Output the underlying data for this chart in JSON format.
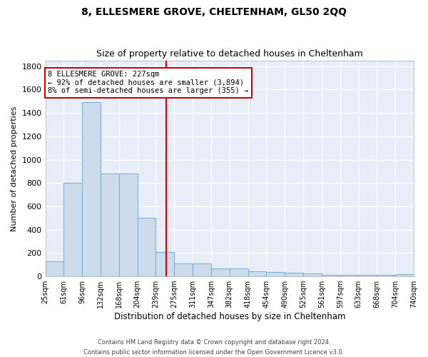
{
  "title": "8, ELLESMERE GROVE, CHELTENHAM, GL50 2QQ",
  "subtitle": "Size of property relative to detached houses in Cheltenham",
  "xlabel": "Distribution of detached houses by size in Cheltenham",
  "ylabel": "Number of detached properties",
  "bar_color": "#ccdcec",
  "bar_edgecolor": "#7bafd4",
  "background_color": "#e8eef8",
  "grid_color": "#ffffff",
  "tick_labels": [
    "25sqm",
    "61sqm",
    "96sqm",
    "132sqm",
    "168sqm",
    "204sqm",
    "239sqm",
    "275sqm",
    "311sqm",
    "347sqm",
    "382sqm",
    "418sqm",
    "454sqm",
    "490sqm",
    "525sqm",
    "561sqm",
    "597sqm",
    "633sqm",
    "668sqm",
    "704sqm",
    "740sqm"
  ],
  "values": [
    130,
    800,
    1490,
    880,
    880,
    500,
    210,
    110,
    110,
    70,
    65,
    45,
    35,
    30,
    25,
    10,
    10,
    10,
    10,
    20
  ],
  "vline_x": 6.08,
  "vline_color": "#cc0000",
  "ylim": [
    0,
    1850
  ],
  "yticks": [
    0,
    200,
    400,
    600,
    800,
    1000,
    1200,
    1400,
    1600,
    1800
  ],
  "annotation_title": "8 ELLESMERE GROVE: 227sqm",
  "annotation_line1": "← 92% of detached houses are smaller (3,894)",
  "annotation_line2": "8% of semi-detached houses are larger (355) →",
  "annotation_box_color": "#ffffff",
  "annotation_border_color": "#cc0000",
  "footer_line1": "Contains HM Land Registry data © Crown copyright and database right 2024.",
  "footer_line2": "Contains public sector information licensed under the Open Government Licence v3.0."
}
